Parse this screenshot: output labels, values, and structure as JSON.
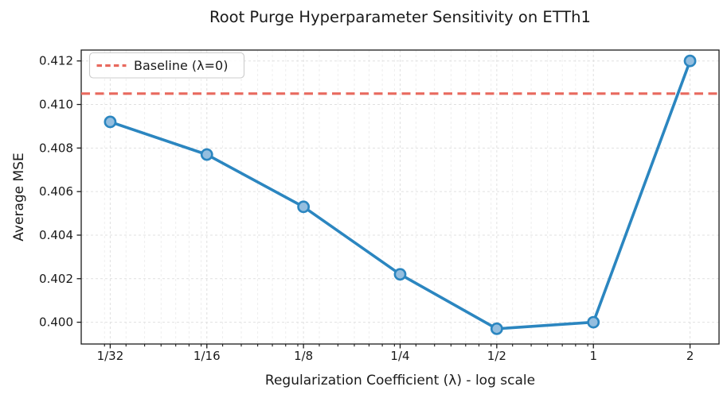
{
  "chart_data": {
    "type": "line",
    "title": "Root Purge Hyperparameter Sensitivity on ETTh1",
    "xlabel": "Regularization Coefficient (λ) - log scale",
    "ylabel": "Average MSE",
    "x_scale": "log2",
    "x_tick_labels": [
      "1/32",
      "1/16",
      "1/8",
      "1/4",
      "1/2",
      "1",
      "2"
    ],
    "x_values": [
      0.03125,
      0.0625,
      0.125,
      0.25,
      0.5,
      1,
      2
    ],
    "series": [
      {
        "values": [
          0.4092,
          0.4077,
          0.4053,
          0.4022,
          0.3997,
          0.4,
          0.412
        ],
        "color": "#2b86c0",
        "marker": "circle",
        "marker_face": "#94bedf"
      }
    ],
    "baseline": {
      "label": "Baseline (λ=0)",
      "value": 0.4105,
      "color": "#e8695e",
      "style": "dashed"
    },
    "y_tick_labels": [
      "0.400",
      "0.402",
      "0.404",
      "0.406",
      "0.408",
      "0.410",
      "0.412"
    ],
    "ylim": [
      0.399,
      0.4125
    ],
    "xlim_log2": [
      -5.3,
      1.3
    ],
    "grid": true,
    "grid_style": "dashed",
    "legend_position": "upper left",
    "colors": {
      "grid_major": "#e0e0e0",
      "grid_minor": "#ececec",
      "spine": "#1a1a1a",
      "legend_border": "#cccccc"
    }
  }
}
